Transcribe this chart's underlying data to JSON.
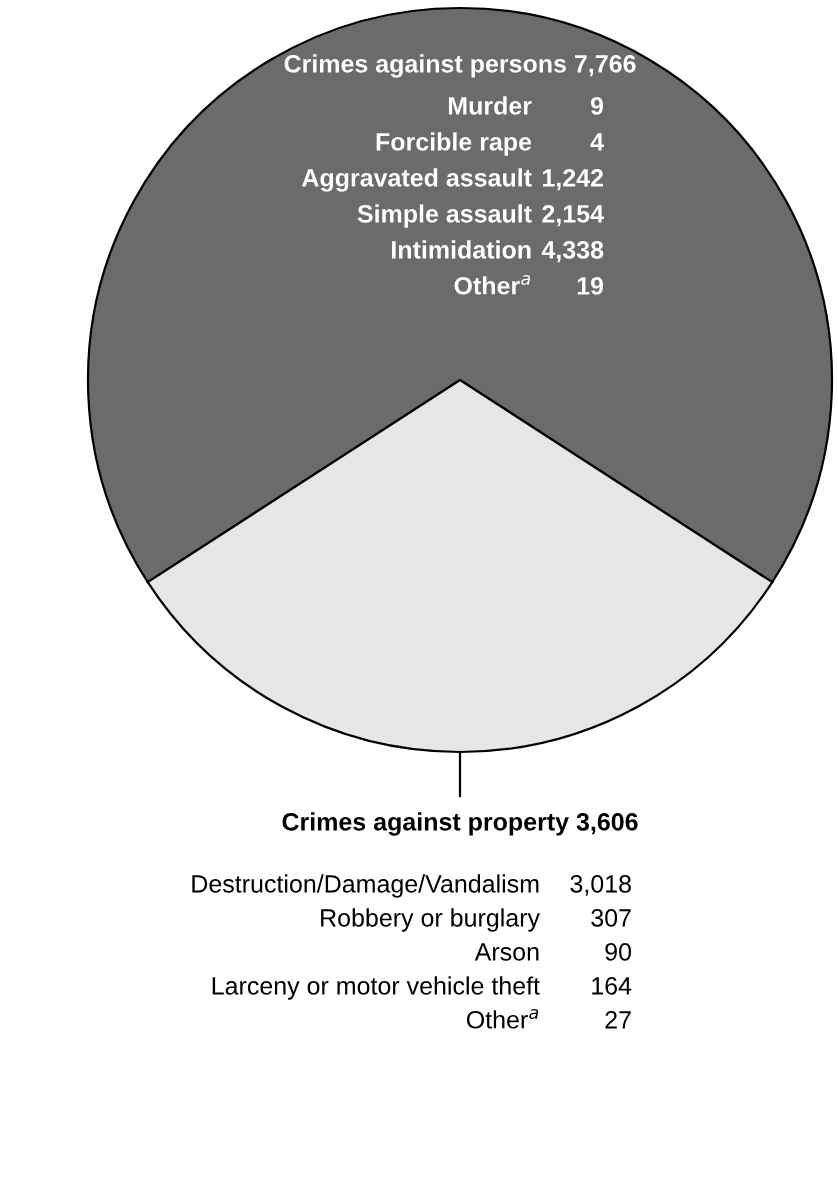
{
  "chart_data": {
    "type": "pie",
    "categories": [
      "Crimes against persons",
      "Crimes against property"
    ],
    "values": [
      7766,
      3606
    ],
    "value_labels": [
      "7,766",
      "3,606"
    ],
    "colors": [
      "#6b6b6b",
      "#e6e6e6"
    ],
    "annotations": [
      "Murder 9",
      "Forcible rape 4",
      "Aggravated assault 1,242",
      "Simple assault 2,154",
      "Intimidation 4,338",
      "Other$^{a}$ 19",
      "Destruction/Damage/Vandalism 3,018",
      "Robbery or burglary 307",
      "Arson 90",
      "Larceny or motor vehicle theft 164",
      "Other$^{a}$ 27"
    ]
  }
}
